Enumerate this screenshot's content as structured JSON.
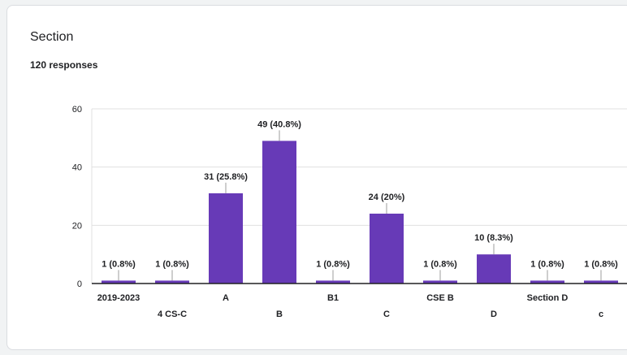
{
  "card": {
    "title": "Section",
    "subtitle": "120 responses"
  },
  "colors": {
    "bar": "#673ab7",
    "grid": "#e0e0e0",
    "axis": "#202124",
    "leader": "#9e9e9e"
  },
  "chart_data": {
    "type": "bar",
    "categories": [
      "2019-2023",
      "4 CS-C",
      "A",
      "B",
      "B1",
      "C",
      "CSE B",
      "D",
      "Section D",
      "c"
    ],
    "values": [
      1,
      1,
      31,
      49,
      1,
      24,
      1,
      10,
      1,
      1
    ],
    "data_labels": [
      "1 (0.8%)",
      "1 (0.8%)",
      "31 (25.8%)",
      "49 (40.8%)",
      "1 (0.8%)",
      "24 (20%)",
      "1 (0.8%)",
      "10 (8.3%)",
      "1 (0.8%)",
      "1 (0.8%)"
    ],
    "yticks": [
      0,
      20,
      40,
      60
    ],
    "ylim": [
      0,
      60
    ],
    "xlabel": "",
    "ylabel": "",
    "grid": true,
    "legend": "none"
  }
}
